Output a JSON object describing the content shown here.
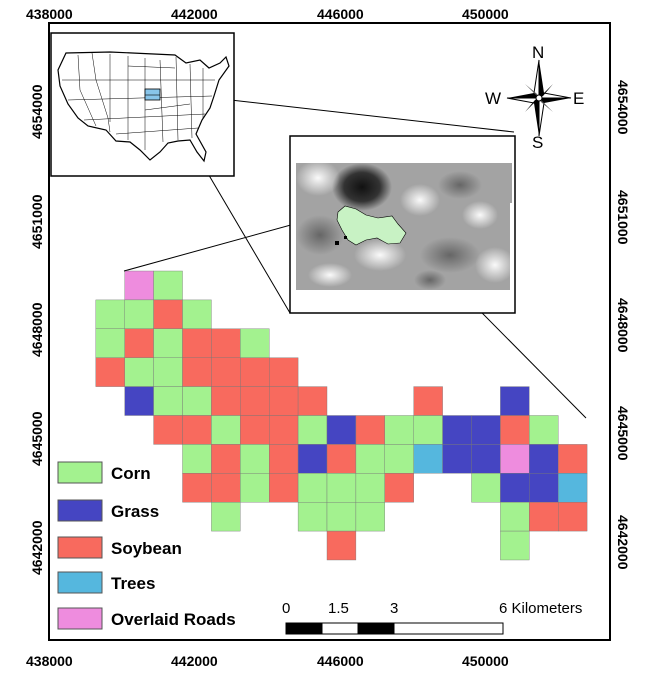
{
  "axes": {
    "x_ticks": [
      "438000",
      "442000",
      "446000",
      "450000"
    ],
    "y_ticks": [
      "4654000",
      "4651000",
      "4648000",
      "4645000",
      "4642000"
    ]
  },
  "compass": {
    "north": "N",
    "south": "S",
    "east": "E",
    "west": "W"
  },
  "legend": [
    {
      "key": "corn",
      "label": "Corn",
      "color": "#a3f28f"
    },
    {
      "key": "grass",
      "label": "Grass",
      "color": "#4545c2"
    },
    {
      "key": "soybean",
      "label": "Soybean",
      "color": "#f86a5e"
    },
    {
      "key": "trees",
      "label": "Trees",
      "color": "#55b7de"
    },
    {
      "key": "roads",
      "label": "Overlaid Roads",
      "color": "#ee8cde"
    }
  ],
  "scale_bar": {
    "labels": [
      "0",
      "1.5",
      "3",
      "6 Kilometers"
    ]
  },
  "grid": {
    "rows": [
      "...RC..............",
      "..CCSC.............",
      "..CSCSSC...........",
      "..SCCSSSS..........",
      "...GCCSSSS...S..G..",
      "....SSCSSCGSCCGGSC.",
      ".....CSCSGSCCTGGRGS",
      ".....SSCSCCCS..CGGT",
      "......C..CCC....CSS",
      "..........S.....C.."
    ]
  }
}
